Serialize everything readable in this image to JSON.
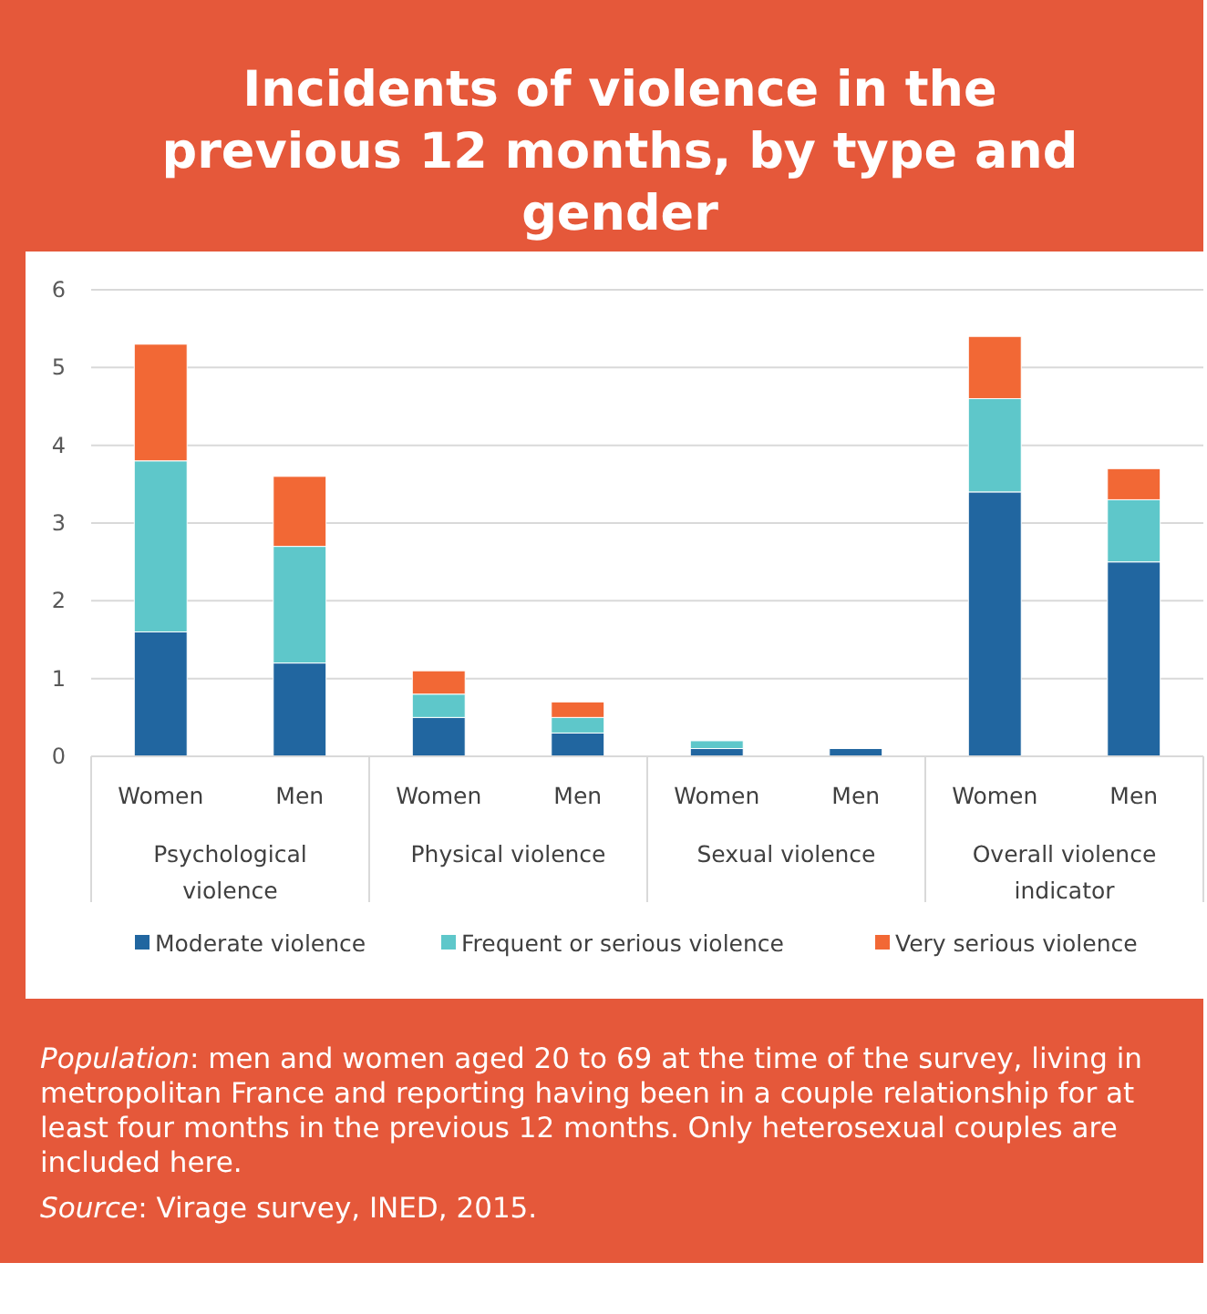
{
  "chart_data": {
    "type": "bar",
    "title": "Incidents of violence in the previous 12 months, by type and gender",
    "categories": [
      "Women",
      "Men",
      "Women",
      "Men",
      "Women",
      "Men",
      "Women",
      "Men"
    ],
    "series": [
      {
        "name": "Moderate violence",
        "color": "#2166a0",
        "values": [
          1.6,
          1.2,
          0.5,
          0.3,
          0.1,
          0.1,
          3.4,
          2.5
        ]
      },
      {
        "name": "Frequent or serious violence",
        "color": "#5ec7ca",
        "values": [
          2.2,
          1.5,
          0.3,
          0.2,
          0.1,
          0,
          1.2,
          0.8
        ]
      },
      {
        "name": "Very serious violence",
        "color": "#f26835",
        "values": [
          1.5,
          0.9,
          0.3,
          0.2,
          0,
          0,
          0.8,
          0.4
        ]
      }
    ],
    "stacked": true,
    "ylim": [
      0,
      6
    ],
    "yticks": [
      0,
      1,
      2,
      3,
      4,
      5,
      6
    ],
    "grid": "y",
    "legend": "bottom",
    "annotations": [
      "Psychological violence",
      "Physical violence",
      "Sexual violence",
      "Overall violence indicator",
      "Population: men and women aged 20 to 69 at the time of the survey, living in metropolitan France and reporting having been in a couple relationship for at least four months in the previous 12 months. Only heterosexual couples are included here.",
      "Source: Virage survey, INED, 2015."
    ]
  }
}
